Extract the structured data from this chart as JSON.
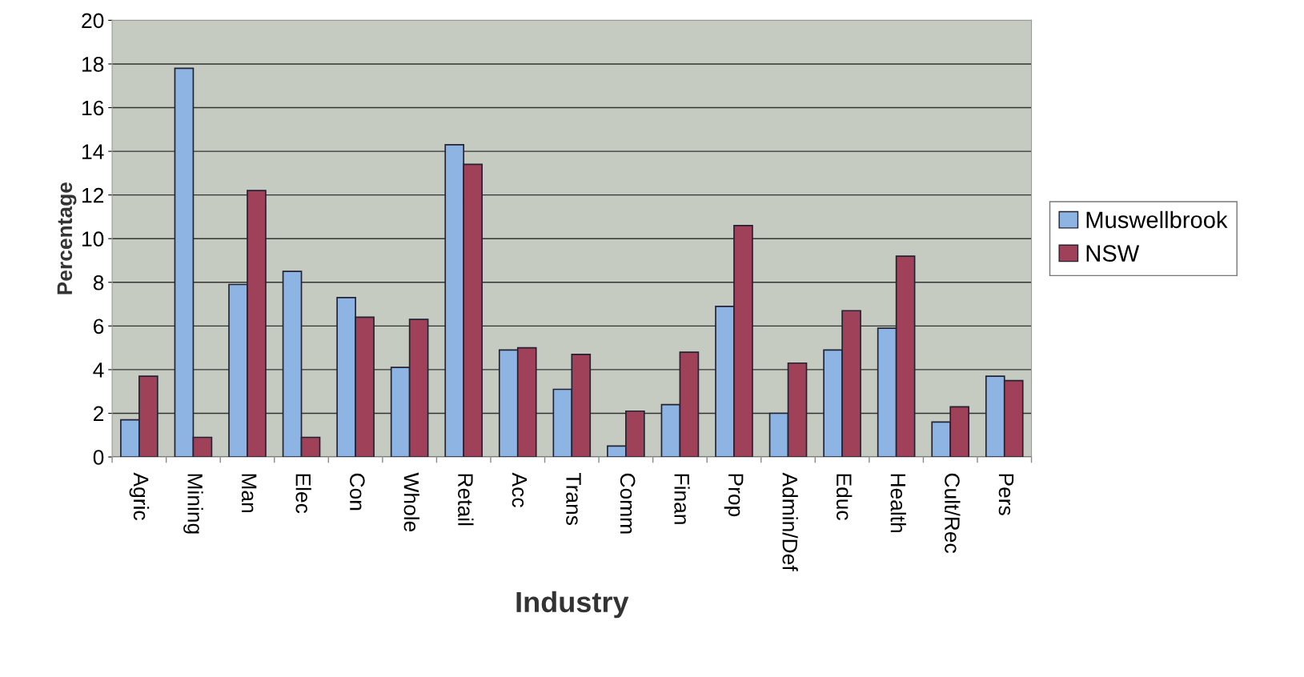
{
  "chart_data": {
    "type": "bar",
    "xlabel": "Industry",
    "ylabel": "Percentage",
    "categories": [
      "Agric",
      "Mining",
      "Man",
      "Elec",
      "Con",
      "Whole",
      "Retail",
      "Acc",
      "Trans",
      "Comm",
      "Finan",
      "Prop",
      "Admin/Def",
      "Educ",
      "Health",
      "Cult/Rec",
      "Pers"
    ],
    "series": [
      {
        "name": "Muswellbrook",
        "color": "#8eb4e3",
        "values": [
          1.7,
          17.8,
          7.9,
          8.5,
          7.3,
          4.1,
          14.3,
          4.9,
          3.1,
          0.5,
          2.4,
          6.9,
          2.0,
          4.9,
          5.9,
          1.6,
          3.7
        ]
      },
      {
        "name": "NSW",
        "color": "#a0415a",
        "values": [
          3.7,
          0.9,
          12.2,
          0.9,
          6.4,
          6.3,
          13.4,
          5.0,
          4.7,
          2.1,
          4.8,
          10.6,
          4.3,
          6.7,
          9.2,
          2.3,
          3.5
        ]
      }
    ],
    "ylim": [
      0,
      20
    ],
    "yticks": [
      0,
      2,
      4,
      6,
      8,
      10,
      12,
      14,
      16,
      18,
      20
    ],
    "grid": "y",
    "legend": "right"
  }
}
